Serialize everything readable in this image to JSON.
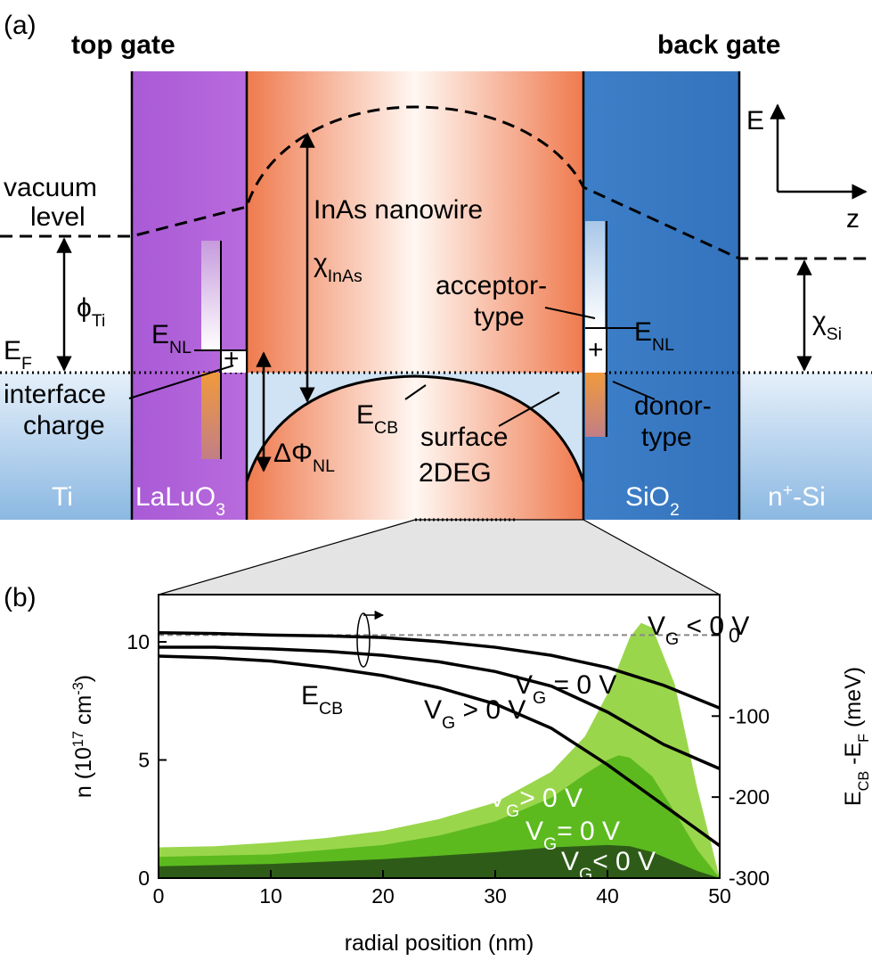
{
  "panel_a": {
    "label": "(a)",
    "top_gate": "top gate",
    "back_gate": "back gate",
    "vacuum_level": [
      "vacuum",
      "level"
    ],
    "axis_e": "E",
    "axis_z": "z",
    "nanowire": "InAs nanowire",
    "chi_inas": [
      {
        "t": "χ"
      },
      {
        "sub": "InAs"
      }
    ],
    "phi_ti": [
      {
        "t": "ϕ"
      },
      {
        "sub": "Ti"
      }
    ],
    "e_f": [
      {
        "t": "E"
      },
      {
        "sub": "F"
      }
    ],
    "e_nl_left": [
      {
        "t": "E"
      },
      {
        "sub": "NL"
      }
    ],
    "e_nl_right": [
      {
        "t": "E"
      },
      {
        "sub": "NL"
      }
    ],
    "plus_left": "+",
    "plus_right": "+",
    "interface_charge": [
      "interface",
      "charge"
    ],
    "acceptor": [
      "acceptor-",
      "type"
    ],
    "donor": [
      "donor-",
      "type"
    ],
    "e_cb": [
      {
        "t": "E"
      },
      {
        "sub": "CB"
      }
    ],
    "delta_phi": [
      {
        "t": "ΔΦ"
      },
      {
        "sub": "NL"
      }
    ],
    "surface_2deg": [
      "surface",
      "2DEG"
    ],
    "chi_si": [
      {
        "t": "χ"
      },
      {
        "sub": "Si"
      }
    ],
    "ti": "Ti",
    "laluo3": [
      {
        "t": "LaLuO"
      },
      {
        "sub": "3"
      }
    ],
    "sio2": [
      {
        "t": "SiO"
      },
      {
        "sub": "2"
      }
    ],
    "n_si": [
      {
        "t": "n"
      },
      {
        "sup": "+"
      },
      {
        "t": "-Si"
      }
    ]
  },
  "chart_data": {
    "type": "combo",
    "title": "(b)",
    "xlabel": "radial position (nm)",
    "ylabel": [
      {
        "t": "n (10"
      },
      {
        "sup": "17"
      },
      {
        "t": " cm"
      },
      {
        "sup": "-3"
      },
      {
        "t": ")"
      }
    ],
    "y2label": [
      {
        "t": "E"
      },
      {
        "sub": "CB"
      },
      {
        "t": " -E"
      },
      {
        "sub": "F"
      },
      {
        "t": " (meV)"
      }
    ],
    "line_group_label": [
      {
        "t": "E"
      },
      {
        "sub": "CB"
      }
    ],
    "xlim": [
      0,
      50
    ],
    "xticks": [
      0,
      10,
      20,
      30,
      40,
      50
    ],
    "ylim": [
      0,
      12
    ],
    "yticks": [
      0,
      5,
      10
    ],
    "y2lim": [
      -300,
      50
    ],
    "y2ticks": [
      -300,
      -200,
      -100,
      0
    ],
    "reference_lines": [
      {
        "axis": "y2",
        "value": 0,
        "color": "#888888"
      }
    ],
    "series": [
      {
        "type": "area",
        "label": [
          {
            "t": "V"
          },
          {
            "sub": "G"
          },
          {
            "t": "> 0 V"
          }
        ],
        "color": "#9ad64c",
        "x": [
          0,
          5,
          10,
          15,
          20,
          25,
          30,
          35,
          38,
          40,
          42,
          43,
          44,
          46,
          48,
          50
        ],
        "values": [
          1.3,
          1.35,
          1.5,
          1.7,
          2.0,
          2.5,
          3.2,
          4.5,
          6.0,
          7.8,
          10.2,
          10.8,
          10.6,
          8.2,
          3.8,
          0
        ]
      },
      {
        "type": "area",
        "label": [
          {
            "t": "V"
          },
          {
            "sub": "G"
          },
          {
            "t": "= 0 V"
          }
        ],
        "color": "#5cba1f",
        "x": [
          0,
          10,
          20,
          25,
          30,
          35,
          38,
          40,
          41,
          42,
          44,
          46,
          48,
          50
        ],
        "values": [
          0.9,
          1.0,
          1.4,
          1.8,
          2.4,
          3.4,
          4.4,
          5.0,
          5.2,
          5.1,
          4.3,
          2.8,
          1.2,
          0
        ]
      },
      {
        "type": "area",
        "label": [
          {
            "t": "V"
          },
          {
            "sub": "G"
          },
          {
            "t": "< 0 V"
          }
        ],
        "color": "#2e5c18",
        "x": [
          0,
          10,
          20,
          30,
          35,
          40,
          42,
          44,
          46,
          48,
          50
        ],
        "values": [
          0.5,
          0.6,
          0.8,
          1.1,
          1.3,
          1.4,
          1.35,
          1.1,
          0.7,
          0.3,
          0
        ]
      },
      {
        "type": "line",
        "axis": "y2",
        "label": [
          {
            "t": "V"
          },
          {
            "sub": "G"
          },
          {
            "t": " < 0 V"
          }
        ],
        "color": "#000000",
        "x": [
          0,
          5,
          10,
          15,
          20,
          25,
          30,
          35,
          40,
          45,
          50
        ],
        "values": [
          3,
          2,
          0,
          -1,
          -3,
          -8,
          -15,
          -25,
          -40,
          -62,
          -90
        ]
      },
      {
        "type": "line",
        "axis": "y2",
        "label": [
          {
            "t": "V"
          },
          {
            "sub": "G"
          },
          {
            "t": " = 0 V"
          }
        ],
        "color": "#000000",
        "x": [
          0,
          5,
          10,
          15,
          20,
          25,
          30,
          35,
          40,
          45,
          50
        ],
        "values": [
          -15,
          -15,
          -17,
          -20,
          -25,
          -33,
          -45,
          -63,
          -95,
          -135,
          -165
        ]
      },
      {
        "type": "line",
        "axis": "y2",
        "label": [
          {
            "t": "V"
          },
          {
            "sub": "G"
          },
          {
            "t": " > 0 V"
          }
        ],
        "color": "#000000",
        "x": [
          0,
          5,
          10,
          15,
          20,
          25,
          30,
          35,
          40,
          45,
          50
        ],
        "values": [
          -26,
          -28,
          -32,
          -40,
          -50,
          -65,
          -85,
          -115,
          -160,
          -210,
          -260
        ]
      }
    ]
  }
}
